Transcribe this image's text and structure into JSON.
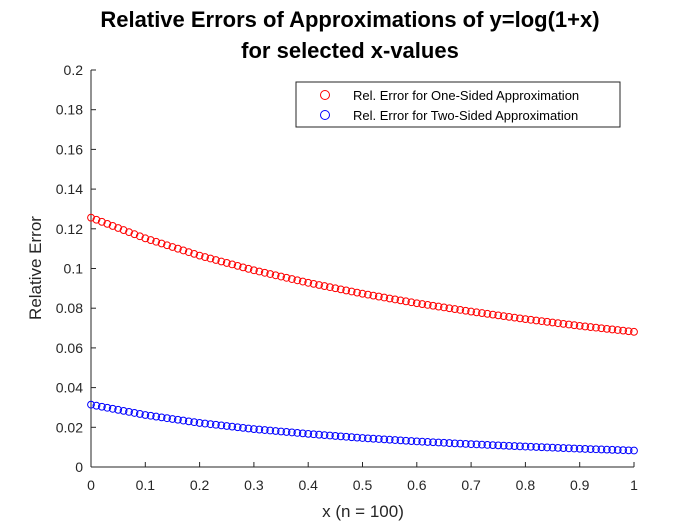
{
  "chart_data": {
    "type": "scatter",
    "title_lines": [
      "Relative Errors of Approximations of y=log(1+x)",
      "for selected x-values"
    ],
    "xlabel": "x (n = 100)",
    "ylabel": "Relative Error",
    "xlim": [
      0,
      1
    ],
    "ylim": [
      0,
      0.2
    ],
    "x_ticks": [
      0,
      0.1,
      0.2,
      0.3,
      0.4,
      0.5,
      0.6,
      0.7,
      0.8,
      0.9,
      1
    ],
    "x_tick_labels": [
      "0",
      "0.1",
      "0.2",
      "0.3",
      "0.4",
      "0.5",
      "0.6",
      "0.7",
      "0.8",
      "0.9",
      "1"
    ],
    "y_ticks": [
      0,
      0.02,
      0.04,
      0.06,
      0.08,
      0.1,
      0.12,
      0.14,
      0.16,
      0.18,
      0.2
    ],
    "y_tick_labels": [
      "0",
      "0.02",
      "0.04",
      "0.06",
      "0.08",
      "0.1",
      "0.12",
      "0.14",
      "0.16",
      "0.18",
      "0.2"
    ],
    "grid": false,
    "legend_position": "top-right",
    "marker": "open circle",
    "series": [
      {
        "name": "Rel. Error for One-Sided Approximation",
        "color": "#ff0000",
        "x": [
          0,
          0.1,
          0.2,
          0.3,
          0.4,
          0.5,
          0.6,
          0.7,
          0.8,
          0.9,
          1
        ],
        "y": [
          0.1256,
          0.1152,
          0.1065,
          0.0991,
          0.0928,
          0.0873,
          0.0825,
          0.0783,
          0.0745,
          0.0711,
          0.0681
        ]
      },
      {
        "name": "Rel. Error for Two-Sided Approximation",
        "color": "#0000ff",
        "x": [
          0,
          0.1,
          0.2,
          0.3,
          0.4,
          0.5,
          0.6,
          0.7,
          0.8,
          0.9,
          1
        ],
        "y": [
          0.0314,
          0.0262,
          0.0222,
          0.0191,
          0.0167,
          0.0146,
          0.0129,
          0.0115,
          0.0103,
          0.0092,
          0.0083
        ]
      }
    ]
  }
}
